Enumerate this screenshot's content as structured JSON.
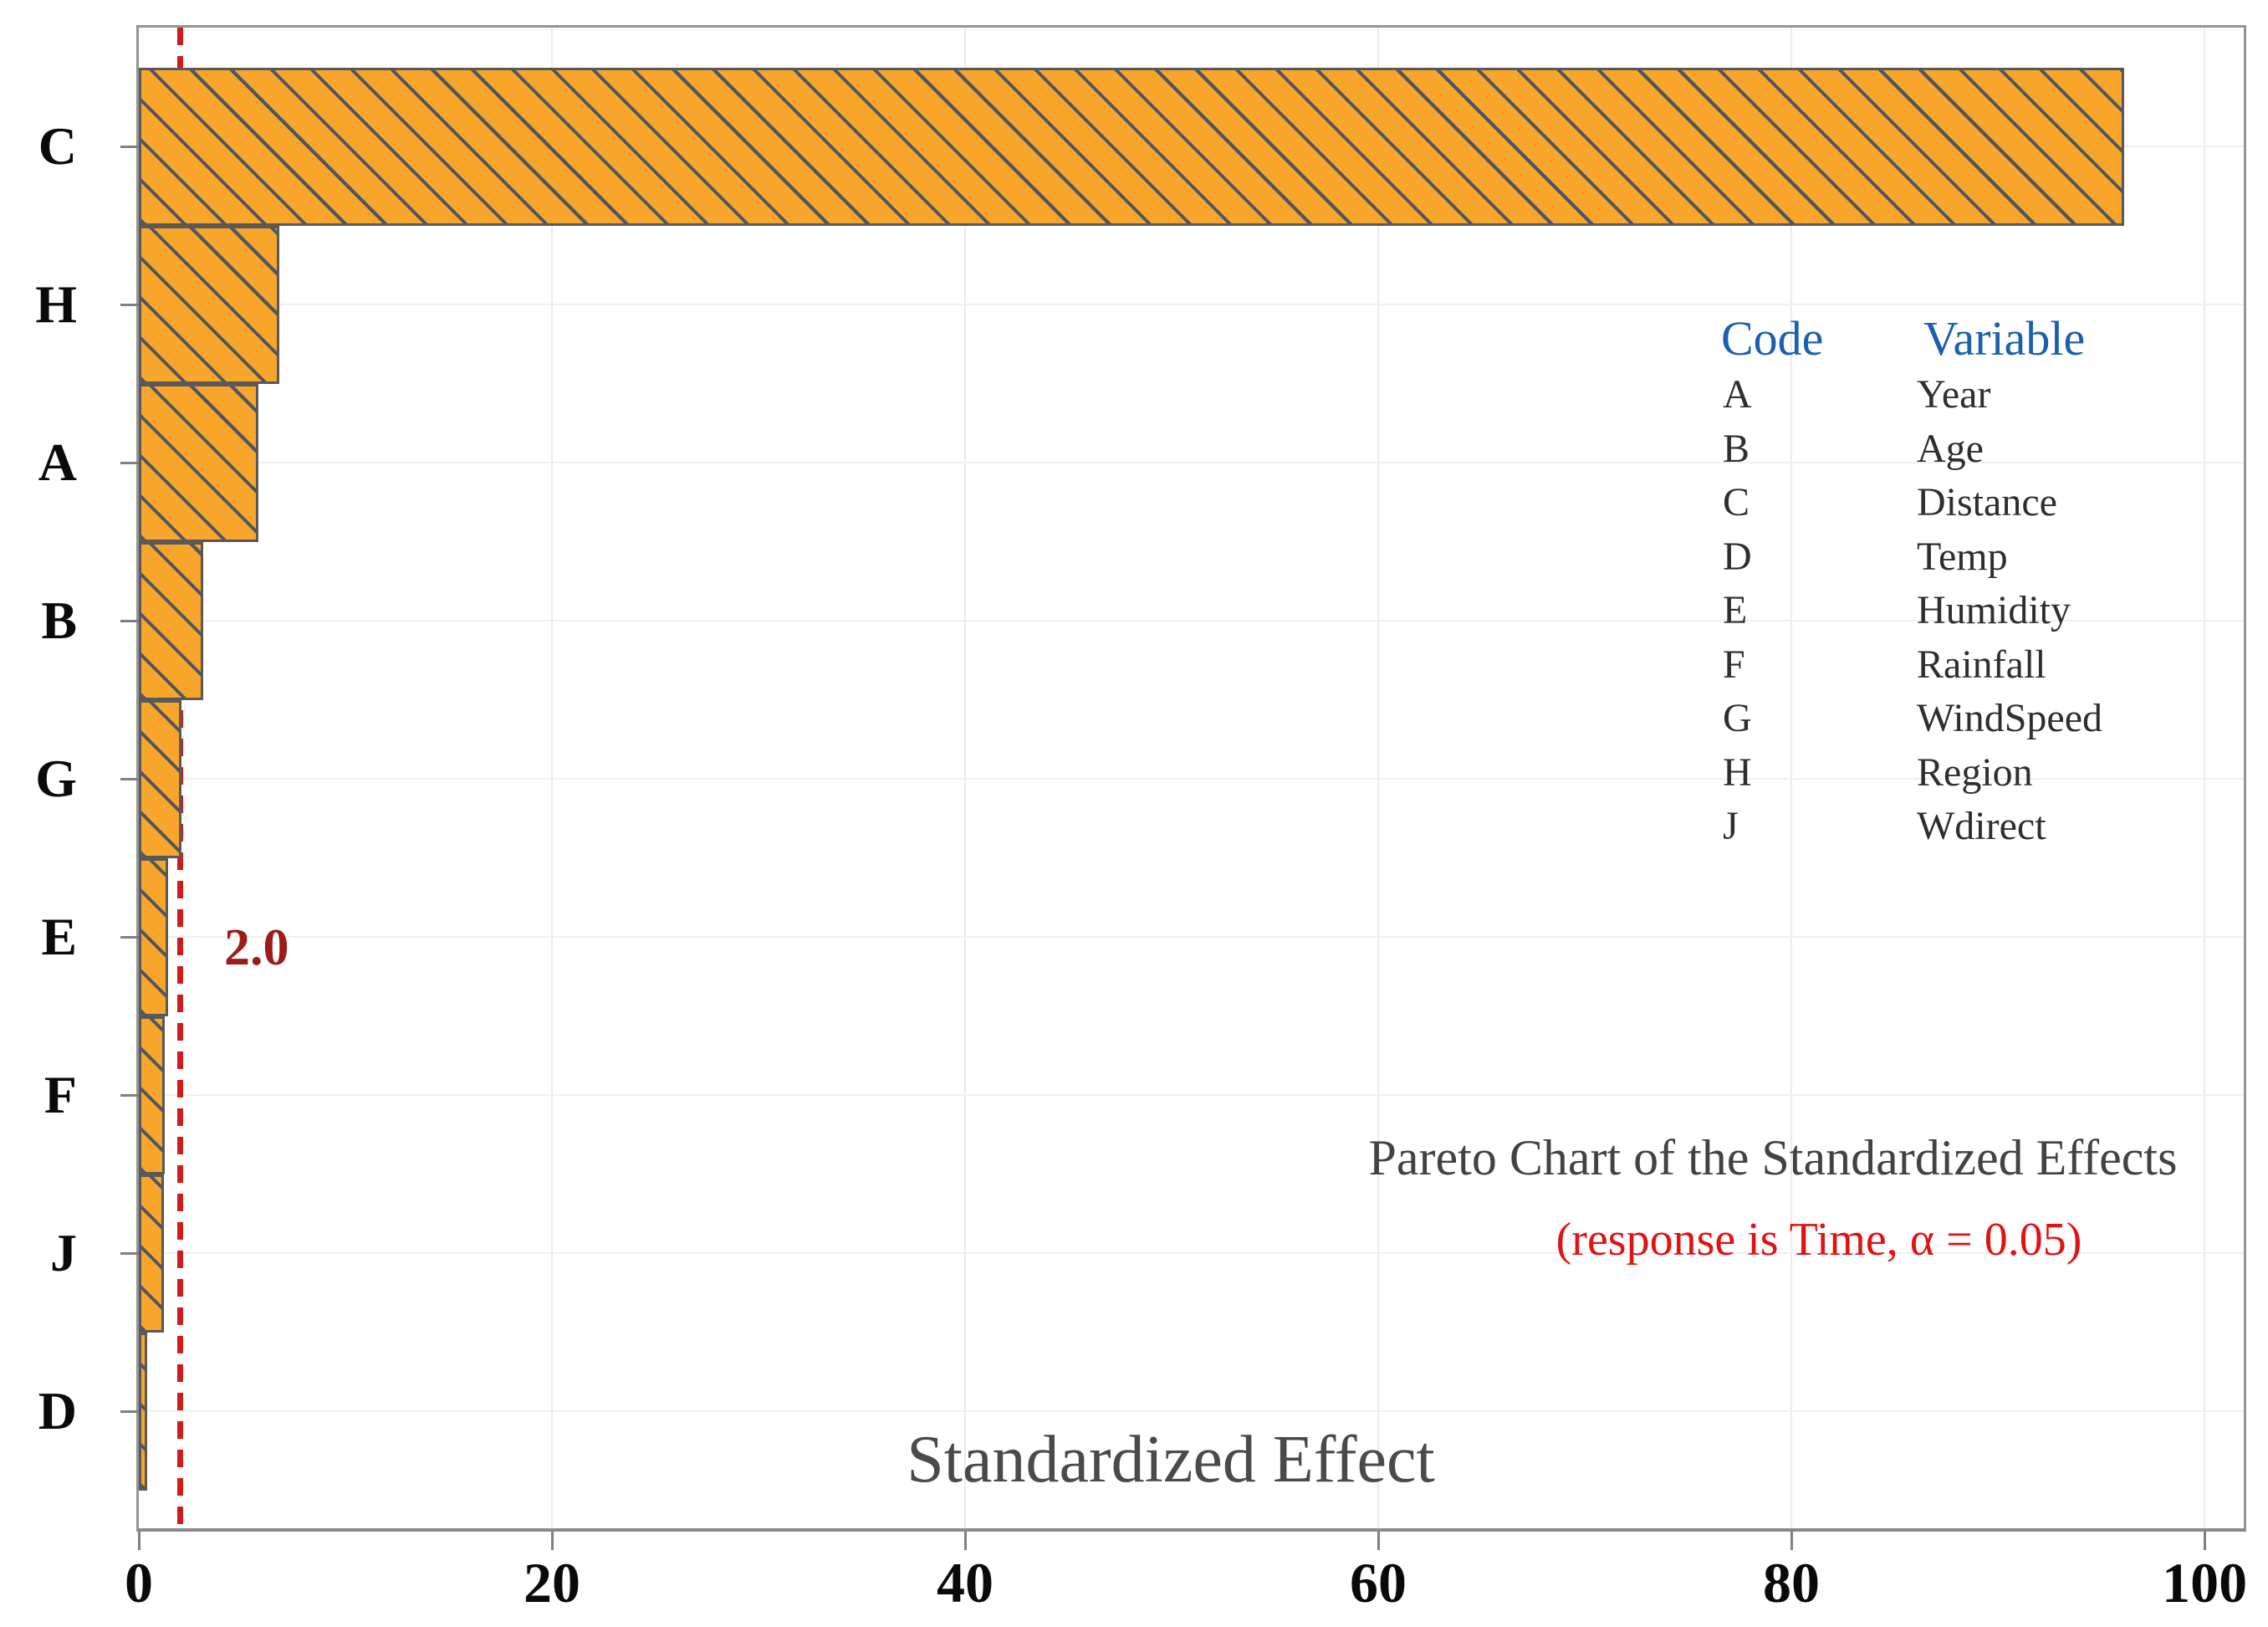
{
  "chart_data": {
    "type": "bar",
    "orientation": "horizontal",
    "title": "Pareto Chart of the Standardized Effects",
    "subtitle": "(response is Time, α = 0.05)",
    "xlabel": "Standardized Effect",
    "categories": [
      "C",
      "H",
      "A",
      "B",
      "G",
      "E",
      "F",
      "J",
      "D"
    ],
    "values": [
      96.1,
      6.8,
      5.8,
      3.1,
      2.05,
      1.4,
      1.25,
      1.2,
      0.4
    ],
    "x_ticks": [
      0,
      20,
      40,
      60,
      80,
      100
    ],
    "xlim": [
      0,
      101.9
    ],
    "grid": true,
    "legend_position": "top-right",
    "reference_line": {
      "value": 2.0,
      "label": "2.0"
    },
    "bar_hatch": "diagonal-backslash"
  },
  "legend": {
    "headers": {
      "code": "Code",
      "variable": "Variable"
    },
    "rows": [
      {
        "code": "A",
        "variable": "Year"
      },
      {
        "code": "B",
        "variable": "Age"
      },
      {
        "code": "C",
        "variable": "Distance"
      },
      {
        "code": "D",
        "variable": "Temp"
      },
      {
        "code": "E",
        "variable": "Humidity"
      },
      {
        "code": "F",
        "variable": "Rainfall"
      },
      {
        "code": "G",
        "variable": "WindSpeed"
      },
      {
        "code": "H",
        "variable": "Region"
      },
      {
        "code": "J",
        "variable": "Wdirect"
      }
    ]
  },
  "colors": {
    "bar_fill": "#F7A62B",
    "bar_hatch_line": "#4F5660",
    "bar_border": "#595959",
    "reference_line": "#CE1B1B",
    "reference_label": "#9C1C1C",
    "title_text": "#424242",
    "subtitle_text": "#E11212",
    "axis_title_text": "#4A4A4A",
    "legend_header": "#1C5FAF",
    "legend_text": "#2E2E2E",
    "gridline": "#EDEDED",
    "frame": "#949494"
  }
}
